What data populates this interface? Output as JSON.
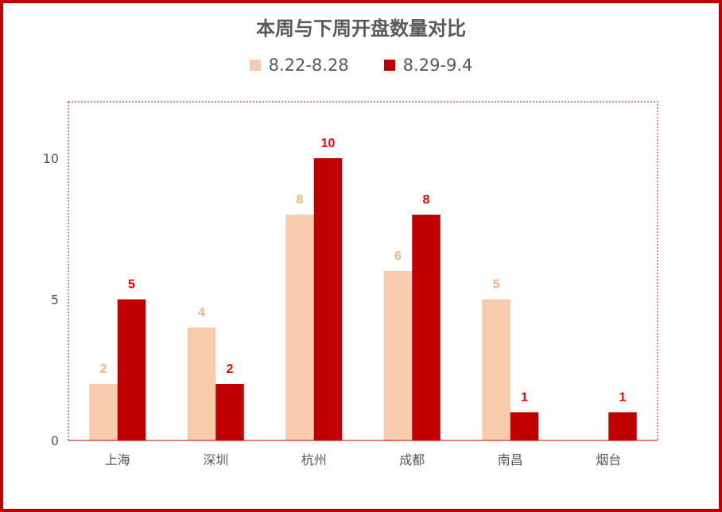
{
  "chart_data": {
    "type": "bar",
    "title": "本周与下周开盘数量对比",
    "categories": [
      "上海",
      "深圳",
      "杭州",
      "成都",
      "南昌",
      "烟台"
    ],
    "series": [
      {
        "name": "8.22-8.28",
        "color": "#f8cbad",
        "label_color": "#f4b183",
        "values": [
          2,
          4,
          8,
          6,
          5,
          null
        ]
      },
      {
        "name": "8.29-9.4",
        "color": "#c00000",
        "label_color": "#ff0000",
        "values": [
          5,
          2,
          10,
          8,
          1,
          1
        ]
      }
    ],
    "ylim": [
      0,
      12
    ],
    "yticks": [
      0,
      5,
      10
    ],
    "legend_position": "top",
    "grid": false
  }
}
